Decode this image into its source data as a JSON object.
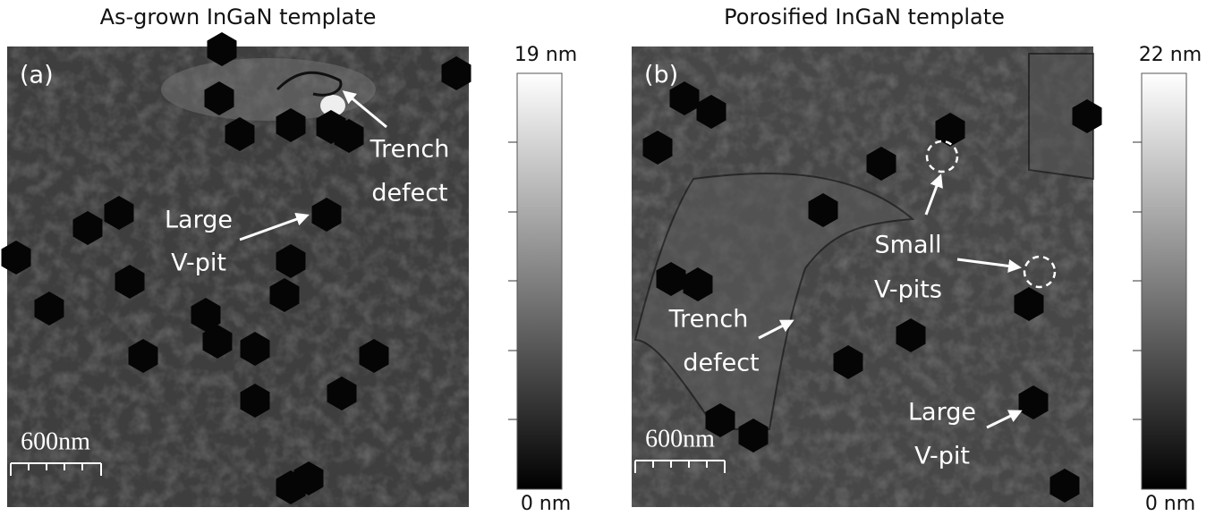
{
  "panels": [
    {
      "title": "As-grown InGaN template",
      "label": "(a)",
      "scale_bar": "600nm",
      "colorbar": {
        "max": "19 nm",
        "min": "0 nm"
      },
      "annotations": [
        {
          "lines": [
            "Trench",
            "defect"
          ]
        },
        {
          "lines": [
            "Large",
            "V-pit"
          ]
        }
      ]
    },
    {
      "title": "Porosified InGaN template",
      "label": "(b)",
      "scale_bar": "600nm",
      "colorbar": {
        "max": "22 nm",
        "min": "0 nm"
      },
      "annotations": [
        {
          "lines": [
            "Small",
            "V-pits"
          ]
        },
        {
          "lines": [
            "Trench",
            "defect"
          ]
        },
        {
          "lines": [
            "Large",
            "V-pit"
          ]
        }
      ]
    }
  ]
}
